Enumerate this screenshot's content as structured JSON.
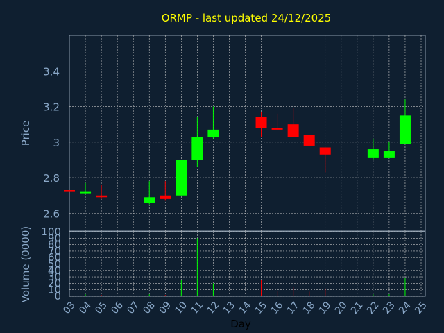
{
  "chart_data": {
    "type": "candlestick",
    "title": "ORMP - last updated 24/12/2025",
    "xlabel": "Day",
    "price_axis": {
      "ylabel": "Price",
      "ylim": [
        2.5,
        3.6
      ],
      "ticks": [
        "2.6",
        "2.8",
        "3",
        "3.2",
        "3.4"
      ]
    },
    "volume_axis": {
      "ylabel": "Volume (0000)",
      "ylim": [
        0,
        100
      ],
      "ticks": [
        "0",
        "10",
        "20",
        "30",
        "40",
        "50",
        "60",
        "70",
        "80",
        "90",
        "100"
      ]
    },
    "x_ticks": [
      "03",
      "04",
      "05",
      "06",
      "07",
      "08",
      "09",
      "10",
      "11",
      "12",
      "13",
      "14",
      "15",
      "16",
      "17",
      "18",
      "19",
      "20",
      "21",
      "22",
      "23",
      "24",
      "25"
    ],
    "grid": true,
    "colors": {
      "up": "#00ff00",
      "down": "#ff0000",
      "background": "#0f1f30",
      "title": "#ffff00",
      "axis_text": "#8aa8c8",
      "grid": "#c8c8c8",
      "frame": "#8a9aaa"
    },
    "candles": [
      {
        "day": "03",
        "open": 2.73,
        "high": 2.73,
        "low": 2.72,
        "close": 2.72,
        "volume": 1
      },
      {
        "day": "04",
        "open": 2.72,
        "high": 2.77,
        "low": 2.71,
        "close": 2.72,
        "volume": 3
      },
      {
        "day": "05",
        "open": 2.7,
        "high": 2.76,
        "low": 2.68,
        "close": 2.69,
        "volume": 2
      },
      {
        "day": "08",
        "open": 2.66,
        "high": 2.78,
        "low": 2.65,
        "close": 2.69,
        "volume": 3
      },
      {
        "day": "09",
        "open": 2.7,
        "high": 2.78,
        "low": 2.67,
        "close": 2.68,
        "volume": 2
      },
      {
        "day": "10",
        "open": 2.7,
        "high": 2.9,
        "low": 2.7,
        "close": 2.9,
        "volume": 25
      },
      {
        "day": "11",
        "open": 2.9,
        "high": 3.14,
        "low": 2.86,
        "close": 3.03,
        "volume": 90
      },
      {
        "day": "12",
        "open": 3.03,
        "high": 3.2,
        "low": 3.02,
        "close": 3.07,
        "volume": 20
      },
      {
        "day": "15",
        "open": 3.14,
        "high": 3.17,
        "low": 3.03,
        "close": 3.08,
        "volume": 25
      },
      {
        "day": "16",
        "open": 3.08,
        "high": 3.16,
        "low": 3.07,
        "close": 3.07,
        "volume": 8
      },
      {
        "day": "17",
        "open": 3.1,
        "high": 3.19,
        "low": 3.03,
        "close": 3.03,
        "volume": 14
      },
      {
        "day": "18",
        "open": 3.04,
        "high": 3.04,
        "low": 2.98,
        "close": 2.98,
        "volume": 7
      },
      {
        "day": "19",
        "open": 2.97,
        "high": 2.97,
        "low": 2.83,
        "close": 2.93,
        "volume": 12
      },
      {
        "day": "22",
        "open": 2.91,
        "high": 3.02,
        "low": 2.9,
        "close": 2.96,
        "volume": 3
      },
      {
        "day": "23",
        "open": 2.91,
        "high": 3.0,
        "low": 2.91,
        "close": 2.95,
        "volume": 3
      },
      {
        "day": "24",
        "open": 2.99,
        "high": 3.24,
        "low": 2.99,
        "close": 3.15,
        "volume": 28
      }
    ]
  }
}
